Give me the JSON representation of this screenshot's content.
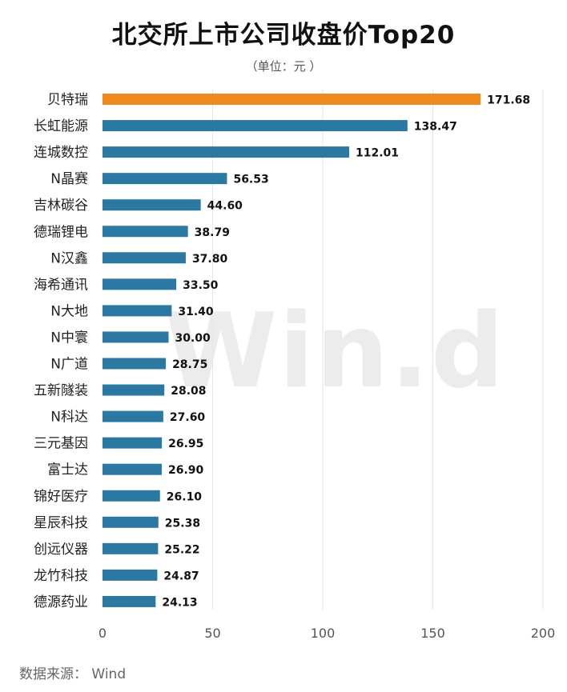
{
  "title": "北交所上市公司收盘价Top20",
  "subtitle": "（单位：元 ）",
  "watermark": "Win.d",
  "source": "数据来源： Wind",
  "colors": {
    "highlight": "#f08a1f",
    "bar": "#2b79a3",
    "axis_text": "#555555",
    "gridline": "#e6e6e6"
  },
  "chart_data": {
    "type": "bar",
    "orientation": "horizontal",
    "title": "北交所上市公司收盘价Top20",
    "subtitle": "（单位：元 ）",
    "xlabel": "",
    "ylabel": "",
    "xlim": [
      0,
      200
    ],
    "x_ticks": [
      0,
      50,
      100,
      150,
      200
    ],
    "grid": "vertical",
    "highlight_index": 0,
    "categories": [
      "贝特瑞",
      "长虹能源",
      "连城数控",
      "N晶赛",
      "吉林碳谷",
      "德瑞锂电",
      "N汉鑫",
      "海希通讯",
      "N大地",
      "N中寰",
      "N广道",
      "五新隧装",
      "N科达",
      "三元基因",
      "富士达",
      "锦好医疗",
      "星辰科技",
      "创远仪器",
      "龙竹科技",
      "德源药业"
    ],
    "values": [
      171.68,
      138.47,
      112.01,
      56.53,
      44.6,
      38.79,
      37.8,
      33.5,
      31.4,
      30.0,
      28.75,
      28.08,
      27.6,
      26.95,
      26.9,
      26.1,
      25.38,
      25.22,
      24.87,
      24.13
    ],
    "value_labels": [
      "171.68",
      "138.47",
      "112.01",
      "56.53",
      "44.60",
      "38.79",
      "37.80",
      "33.50",
      "31.40",
      "30.00",
      "28.75",
      "28.08",
      "27.60",
      "26.95",
      "26.90",
      "26.10",
      "25.38",
      "25.22",
      "24.87",
      "24.13"
    ]
  }
}
